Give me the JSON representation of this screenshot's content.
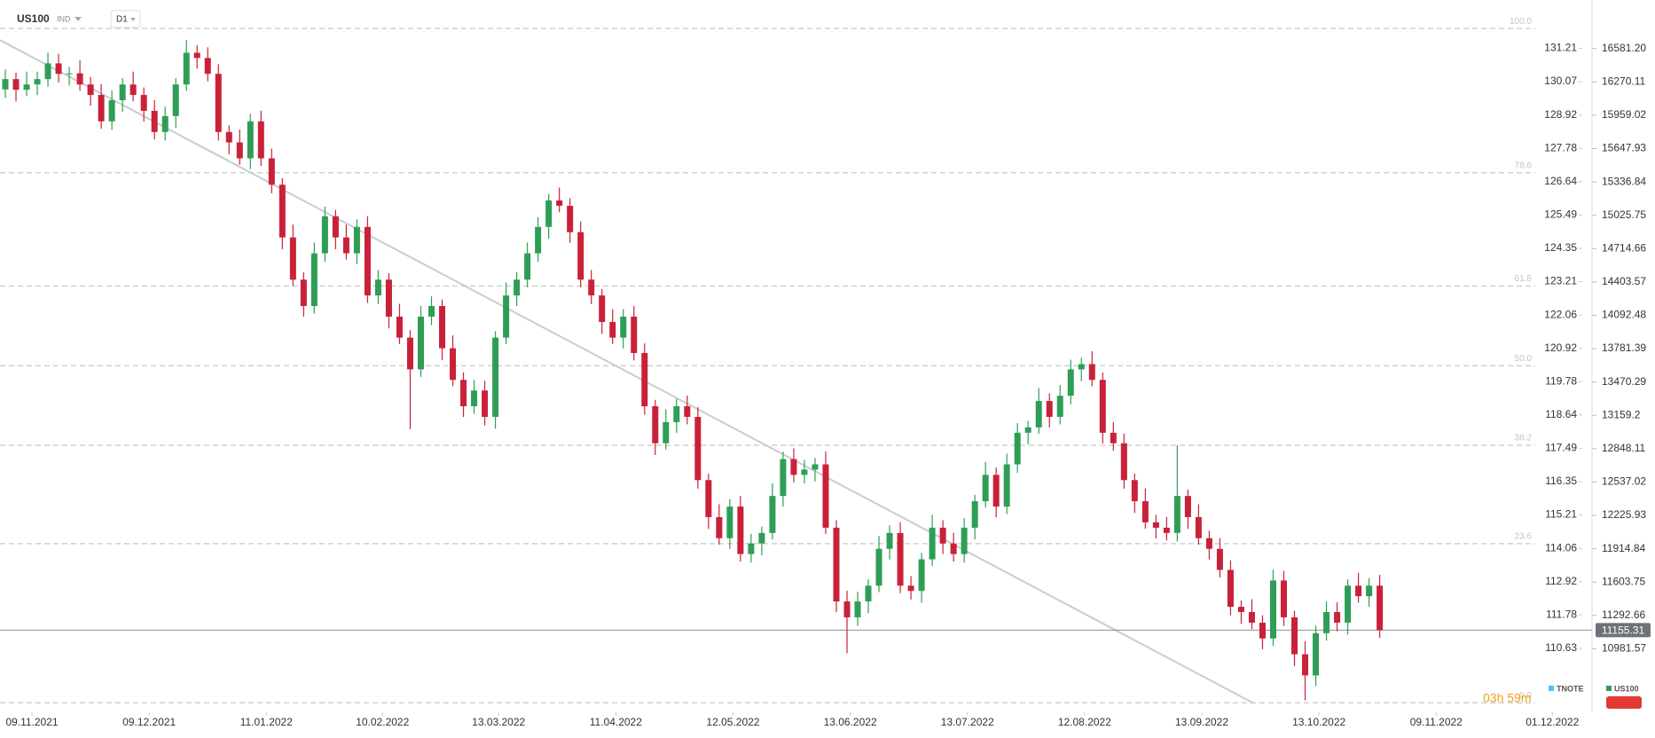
{
  "header": {
    "symbol": "US100",
    "market": "IND",
    "interval": "D1"
  },
  "chart_data": {
    "type": "candlestick",
    "open": [
      16200,
      16296,
      16197,
      16246,
      16296,
      16443,
      16345,
      16350,
      16246,
      16148,
      15902,
      16099,
      16246,
      16148,
      16000,
      15803,
      15951,
      16246,
      16542,
      16493,
      16345,
      15803,
      15705,
      15557,
      15902,
      15557,
      15311,
      14819,
      14425,
      14179,
      14671,
      15016,
      14819,
      14671,
      14917,
      14278,
      14425,
      14080,
      13884,
      13588,
      14080,
      14179,
      13785,
      13490,
      13244,
      13391,
      13145,
      13884,
      14278,
      14425,
      14671,
      14917,
      15164,
      15114,
      14868,
      14425,
      14278,
      14030,
      13884,
      14080,
      13741,
      13244,
      12899,
      13096,
      13244,
      13145,
      12555,
      12210,
      12013,
      12308,
      11865,
      11964,
      12062,
      12407,
      12751,
      12604,
      12653,
      12702,
      12111,
      11423,
      11275,
      11423,
      11570,
      11914,
      12062,
      11570,
      11521,
      11816,
      12111,
      11964,
      11865,
      12111,
      12358,
      12604,
      12308,
      12702,
      12997,
      13047,
      13293,
      13145,
      13342,
      13588,
      13637,
      13490,
      12997,
      12899,
      12555,
      12358,
      12161,
      12111,
      12062,
      12407,
      12210,
      12013,
      11914,
      11717,
      11373,
      11324,
      11225,
      11078,
      11619,
      11275,
      10930,
      10733,
      11127,
      11324,
      11225,
      11570,
      11472,
      11570
    ],
    "high": [
      16386,
      16356,
      16366,
      16366,
      16543,
      16533,
      16410,
      16470,
      16316,
      16248,
      16189,
      16306,
      16366,
      16218,
      16100,
      16041,
      16306,
      16662,
      16612,
      16593,
      16435,
      15863,
      15825,
      15972,
      16002,
      15647,
      15371,
      14939,
      14495,
      14771,
      15106,
      15076,
      14939,
      14987,
      15017,
      14515,
      14485,
      14200,
      13954,
      14180,
      14269,
      14239,
      13905,
      13560,
      13491,
      13481,
      13944,
      14398,
      14495,
      14771,
      15007,
      15224,
      15284,
      15184,
      14968,
      14515,
      14338,
      14150,
      14150,
      14180,
      13831,
      13304,
      13216,
      13314,
      13344,
      13235,
      12615,
      12330,
      12378,
      12408,
      12054,
      12122,
      12527,
      12821,
      12851,
      12743,
      12762,
      12822,
      12181,
      11523,
      11513,
      11630,
      12034,
      12132,
      12162,
      11660,
      11876,
      12231,
      12181,
      12064,
      12201,
      12418,
      12724,
      12674,
      12802,
      13087,
      13107,
      13413,
      13363,
      13442,
      13678,
      13697,
      13757,
      13560,
      13097,
      12989,
      12615,
      12478,
      12231,
      12211,
      12880,
      12467,
      12330,
      12083,
      12014,
      11807,
      11433,
      11444,
      11295,
      11719,
      11709,
      11335,
      11050,
      11197,
      11424,
      11414,
      11630,
      11690,
      11640,
      11670
    ],
    "low": [
      16120,
      16087,
      16137,
      16146,
      16226,
      16265,
      16235,
      16186,
      16048,
      15832,
      15822,
      15989,
      16088,
      15900,
      15733,
      15723,
      15841,
      16186,
      16393,
      16275,
      15723,
      15595,
      15497,
      15457,
      15487,
      15231,
      14709,
      14365,
      14079,
      14109,
      14591,
      14709,
      14611,
      14571,
      14208,
      14198,
      13970,
      13824,
      13030,
      13518,
      14000,
      13675,
      13430,
      13144,
      13174,
      13065,
      13035,
      13824,
      14178,
      14355,
      14591,
      14807,
      15054,
      14768,
      14355,
      14198,
      13920,
      13824,
      13784,
      13671,
      13164,
      12789,
      12839,
      12996,
      13075,
      12475,
      12100,
      11953,
      11913,
      11795,
      11785,
      11854,
      12002,
      12307,
      12534,
      12524,
      12543,
      12051,
      11323,
      10940,
      11195,
      11313,
      11510,
      11814,
      11500,
      11441,
      11411,
      11756,
      11864,
      11795,
      11785,
      12001,
      12298,
      12208,
      12238,
      12622,
      12887,
      12987,
      13045,
      13075,
      13262,
      13478,
      13430,
      12897,
      12829,
      12475,
      12248,
      12101,
      12011,
      11992,
      11982,
      12100,
      11953,
      11814,
      11647,
      11293,
      11214,
      11165,
      10978,
      11008,
      11195,
      10820,
      10500,
      10633,
      11057,
      11145,
      11115,
      11412,
      11372,
      11085
    ],
    "close": [
      16296,
      16197,
      16246,
      16296,
      16443,
      16345,
      16350,
      16246,
      16148,
      15902,
      16099,
      16246,
      16148,
      16000,
      15803,
      15951,
      16246,
      16542,
      16493,
      16345,
      15803,
      15705,
      15557,
      15902,
      15557,
      15311,
      14819,
      14425,
      14179,
      14671,
      15016,
      14819,
      14671,
      14917,
      14278,
      14425,
      14080,
      13884,
      13588,
      14080,
      14179,
      13785,
      13490,
      13244,
      13391,
      13145,
      13884,
      14278,
      14425,
      14671,
      14917,
      15164,
      15114,
      14868,
      14425,
      14278,
      14030,
      13884,
      14080,
      13741,
      13244,
      12899,
      13096,
      13244,
      13145,
      12555,
      12210,
      12013,
      12308,
      11865,
      11964,
      12062,
      12407,
      12751,
      12604,
      12653,
      12702,
      12111,
      11423,
      11275,
      11423,
      11570,
      11914,
      12062,
      11570,
      11521,
      11816,
      12111,
      11964,
      11865,
      12111,
      12358,
      12604,
      12308,
      12702,
      12997,
      13047,
      13293,
      13145,
      13342,
      13588,
      13637,
      13490,
      12997,
      12899,
      12555,
      12358,
      12161,
      12111,
      12062,
      12407,
      12210,
      12013,
      11914,
      11717,
      11373,
      11324,
      11225,
      11078,
      11619,
      11275,
      10930,
      10733,
      11127,
      11324,
      11225,
      11570,
      11472,
      11570,
      11155
    ],
    "up_color": "#2e9e57",
    "down_color": "#c9213a",
    "xlim": [
      -0.5,
      143.6
    ],
    "xticks": [
      {
        "value": 2.5,
        "label": "09.11.2021"
      },
      {
        "value": 13.5,
        "label": "09.12.2021"
      },
      {
        "value": 24.5,
        "label": "11.01.2022"
      },
      {
        "value": 35.4,
        "label": "10.02.2022"
      },
      {
        "value": 46.3,
        "label": "13.03.2022"
      },
      {
        "value": 57.3,
        "label": "11.04.2022"
      },
      {
        "value": 68.3,
        "label": "12.05.2022"
      },
      {
        "value": 79.3,
        "label": "13.06.2022"
      },
      {
        "value": 90.3,
        "label": "13.07.2022"
      },
      {
        "value": 101.3,
        "label": "12.08.2022"
      },
      {
        "value": 112.3,
        "label": "13.09.2022"
      },
      {
        "value": 123.3,
        "label": "13.10.2022"
      },
      {
        "value": 134.3,
        "label": "09.11.2022"
      },
      {
        "value": 145.2,
        "label": "01.12.2022"
      }
    ],
    "ylim": [
      10389,
      17034
    ],
    "yticks": [
      {
        "value": 16581.2,
        "label": "16581.20"
      },
      16270.11,
      15959.02,
      15647.93,
      15336.84,
      15025.75,
      14714.66,
      14403.57,
      14092.48,
      13781.39,
      13470.29,
      13159.2,
      12848.11,
      12537.02,
      12225.93,
      11914.84,
      11603.75,
      11292.66,
      10981.57
    ],
    "y2lim": [
      108.44,
      132.87
    ],
    "y2ticks": [
      131.21,
      130.07,
      128.92,
      127.78,
      126.64,
      125.49,
      124.35,
      123.21,
      122.06,
      120.92,
      119.78,
      118.64,
      117.49,
      116.35,
      115.21,
      114.06,
      112.92,
      111.78,
      110.63
    ],
    "last_price": 11155.31,
    "fib_levels": [
      {
        "value": 16768,
        "label": "100.0"
      },
      {
        "value": 15422,
        "label": "78.6"
      },
      {
        "value": 14365,
        "label": "61.8"
      },
      {
        "value": 13622,
        "label": "50.0"
      },
      {
        "value": 12880,
        "label": "38.2"
      },
      {
        "value": 11962,
        "label": "23.6"
      },
      {
        "value": 10477,
        "label": "0.0"
      }
    ],
    "trendline": {
      "x": [
        -0.5,
        117.1
      ],
      "y": [
        16660,
        10477
      ]
    },
    "legend": [
      {
        "name": "TNOTE",
        "color": "#4fc3f7"
      },
      {
        "name": "US100",
        "color": "#2e9e57"
      }
    ],
    "countdown": "03h 59m"
  }
}
